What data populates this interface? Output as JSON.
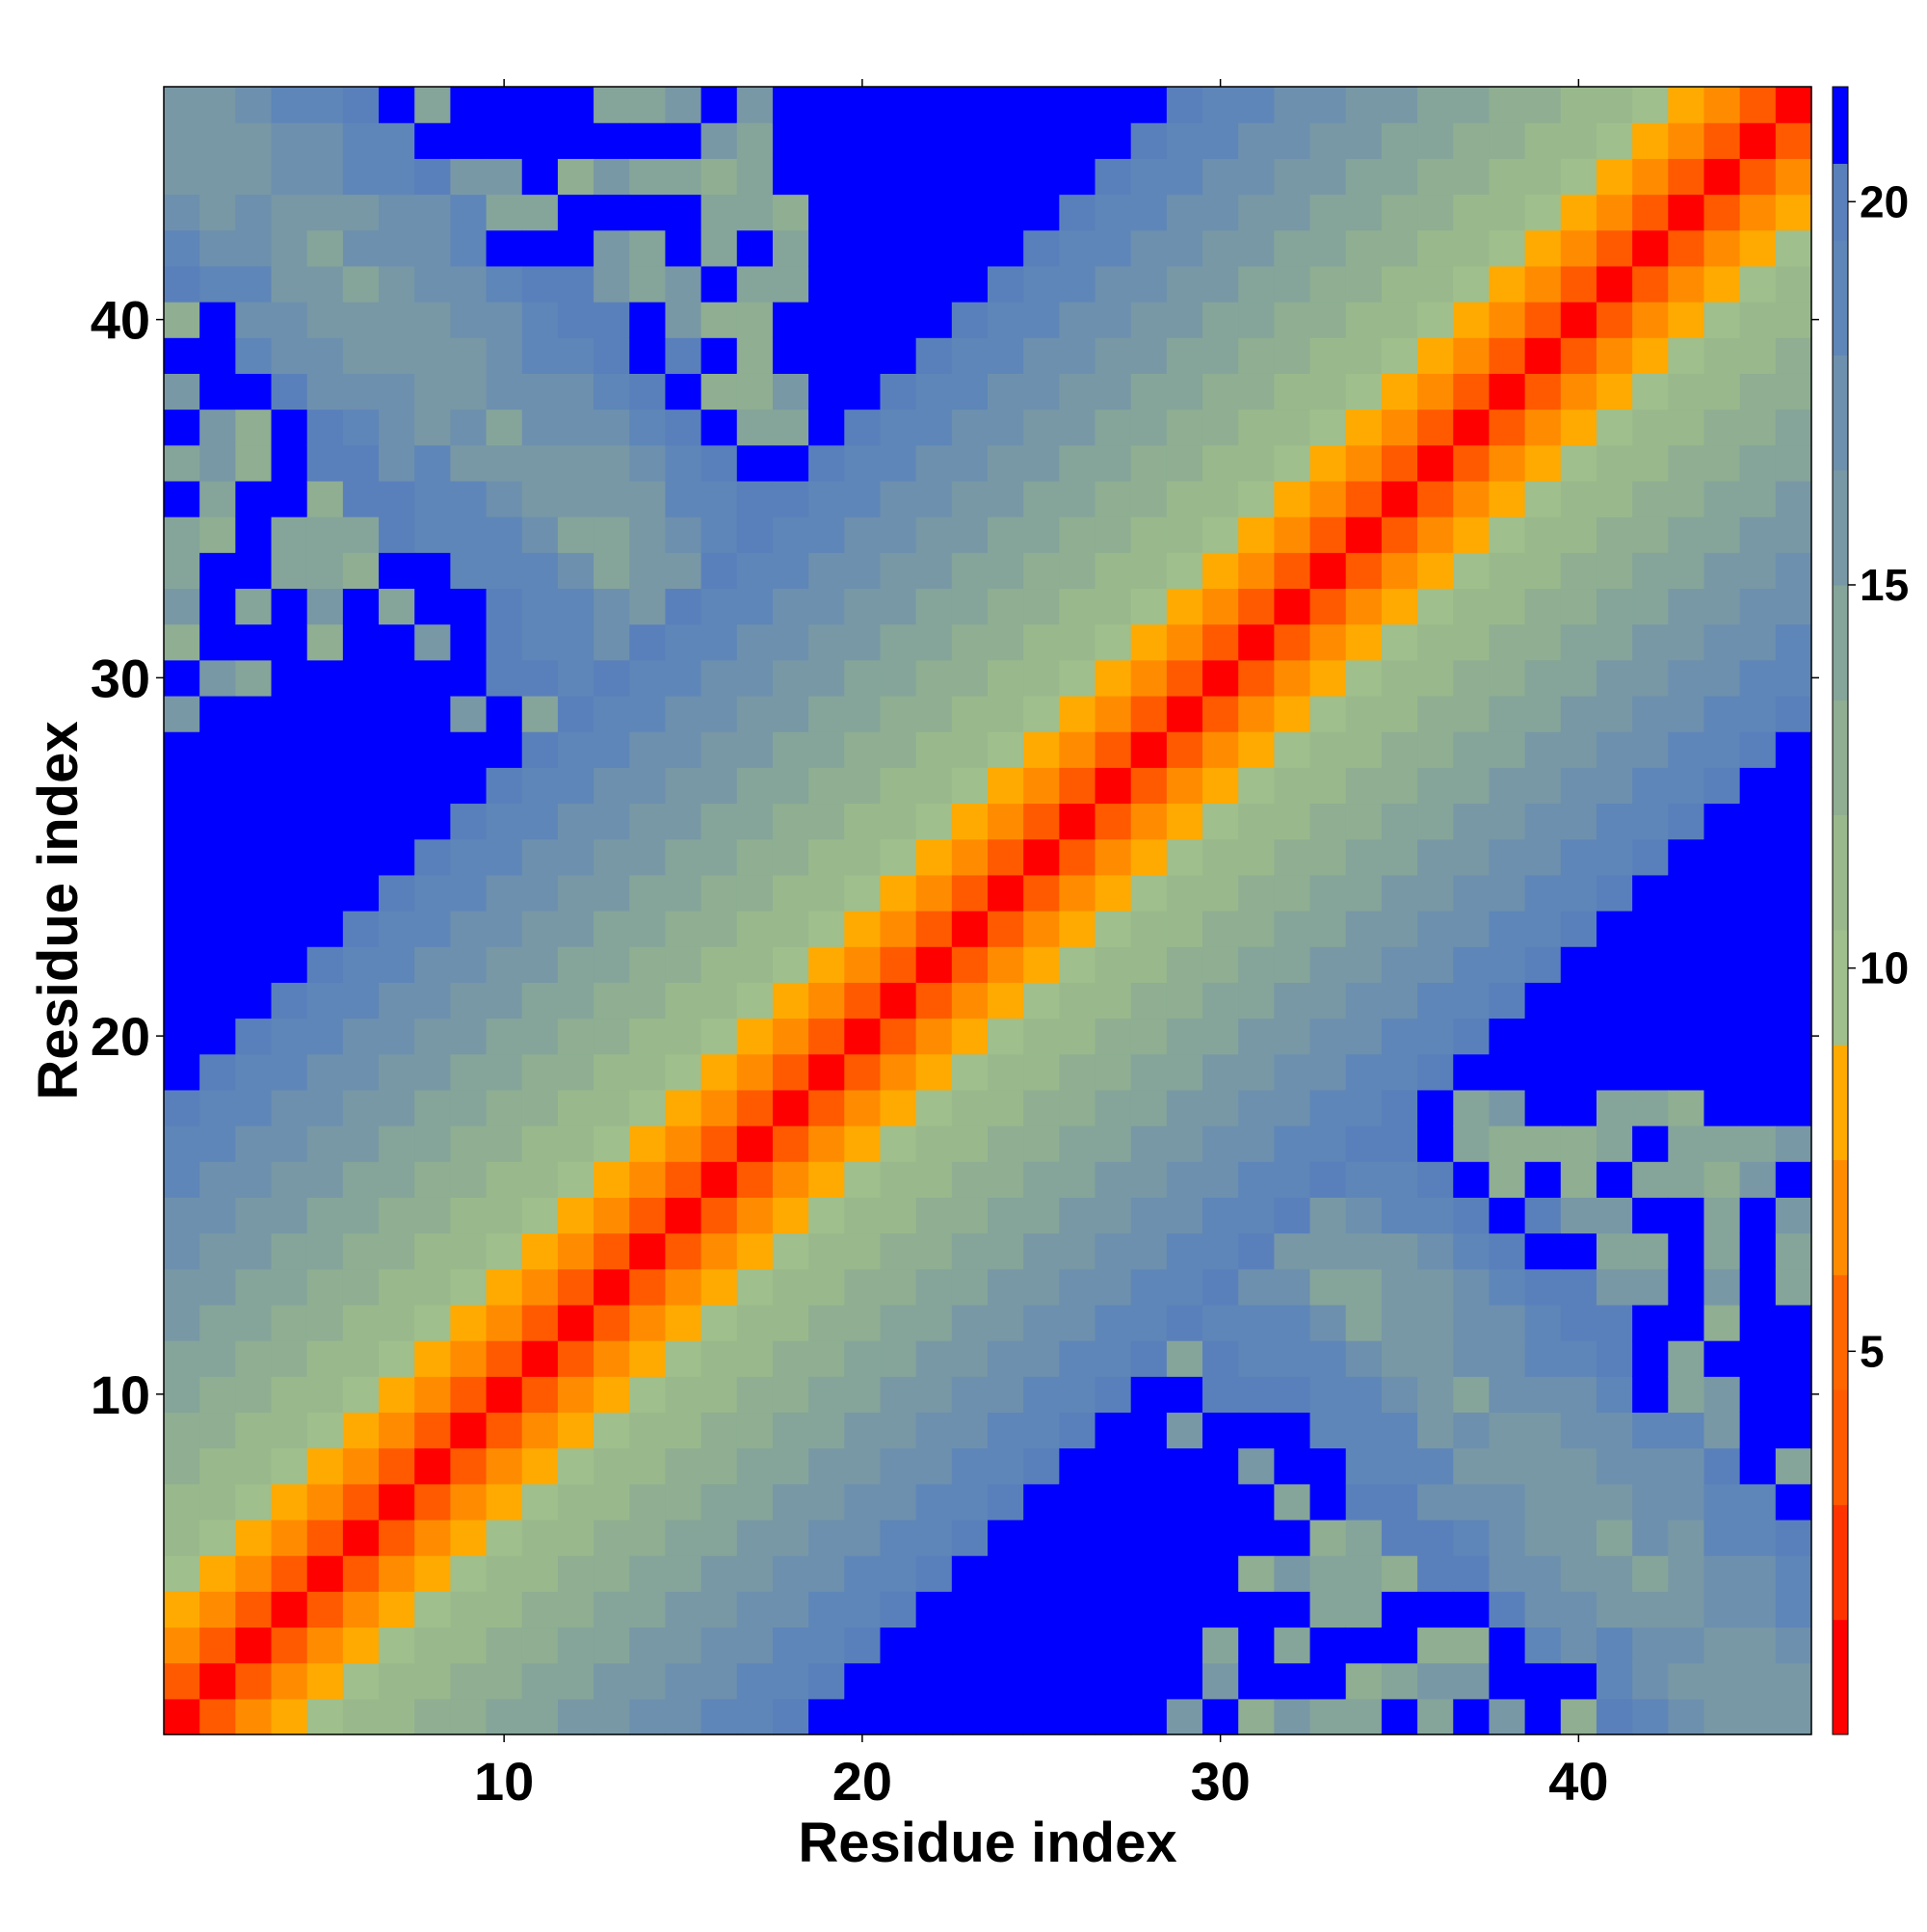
{
  "chart_data": {
    "type": "heatmap",
    "title": "",
    "xlabel": "Residue index",
    "ylabel": "Residue index",
    "n_residues": 46,
    "x_ticks": [
      10,
      20,
      30,
      40
    ],
    "y_ticks": [
      10,
      20,
      30,
      40
    ],
    "xlim": [
      0.5,
      46.5
    ],
    "ylim": [
      0.5,
      46.5
    ],
    "grid": false,
    "colorbar": {
      "ticks": [
        5,
        10,
        15,
        20
      ],
      "range": [
        0,
        21.5
      ],
      "bands": [
        {
          "from": 0.0,
          "to": 1.5,
          "color": "#ff0000"
        },
        {
          "from": 1.5,
          "to": 3.0,
          "color": "#ff3300"
        },
        {
          "from": 3.0,
          "to": 4.5,
          "color": "#ff5a00"
        },
        {
          "from": 4.5,
          "to": 6.0,
          "color": "#ff6600"
        },
        {
          "from": 6.0,
          "to": 7.5,
          "color": "#ff8c00"
        },
        {
          "from": 7.5,
          "to": 9.0,
          "color": "#ffaa00"
        },
        {
          "from": 9.0,
          "to": 10.5,
          "color": "#9fbf8c"
        },
        {
          "from": 10.5,
          "to": 12.0,
          "color": "#99b98c"
        },
        {
          "from": 12.0,
          "to": 13.5,
          "color": "#8fae92"
        },
        {
          "from": 13.5,
          "to": 15.0,
          "color": "#85a59a"
        },
        {
          "from": 15.0,
          "to": 16.5,
          "color": "#7898a6"
        },
        {
          "from": 16.5,
          "to": 18.0,
          "color": "#6d90ae"
        },
        {
          "from": 18.0,
          "to": 19.5,
          "color": "#5e86b8"
        },
        {
          "from": 19.5,
          "to": 20.5,
          "color": "#5a80bc"
        },
        {
          "from": 20.5,
          "to": 21.5,
          "color": "#0000ff"
        }
      ]
    },
    "cap_value": 21,
    "distance_model": {
      "near_diagonal": [
        0.0,
        3.8,
        6.4,
        8.3,
        9.6,
        10.5,
        11.4,
        12.2,
        13.0,
        13.8,
        14.6,
        15.4,
        16.2,
        17.0,
        17.8,
        18.6,
        19.3,
        20.0
      ]
    }
  }
}
